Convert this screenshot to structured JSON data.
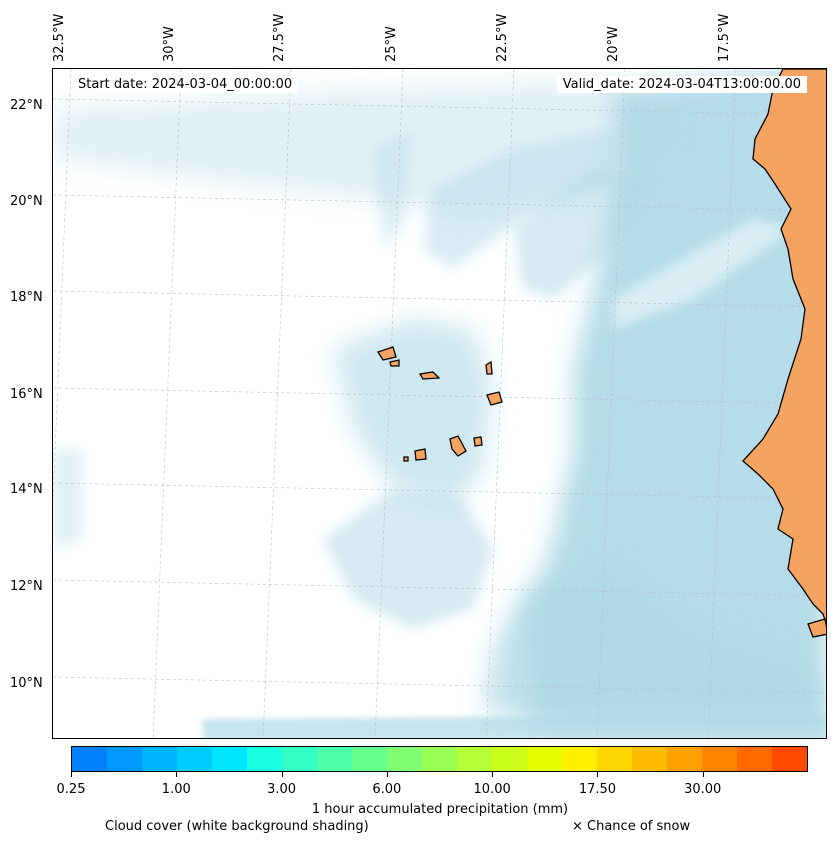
{
  "map": {
    "start_date": "Start date: 2024-03-04_00:00:00",
    "valid_date": "Valid_date: 2024-03-04T13:00:00.00",
    "lon_labels": [
      "32.5°W",
      "30°W",
      "27.5°W",
      "25°W",
      "22.5°W",
      "20°W",
      "17.5°W"
    ],
    "lat_labels": [
      "22°N",
      "20°N",
      "18°N",
      "16°N",
      "14°N",
      "12°N",
      "10°N"
    ],
    "land_color": "#f4a460",
    "cloud_color": "#add8e6",
    "ocean_color": "#ffffff"
  },
  "colorbar": {
    "colors": [
      "#0080ff",
      "#0099ff",
      "#00b3ff",
      "#00ccff",
      "#00e6ff",
      "#1affe0",
      "#33ffc4",
      "#4dffa8",
      "#66ff8c",
      "#80ff70",
      "#99ff54",
      "#b3ff38",
      "#ccff1c",
      "#e6ff00",
      "#fff000",
      "#ffd500",
      "#ffbb00",
      "#ffa000",
      "#ff8500",
      "#ff6a00",
      "#ff4800"
    ],
    "tick_labels": [
      "0.25",
      "1.00",
      "3.00",
      "6.00",
      "10.00",
      "17.50",
      "30.00"
    ],
    "label": "1 hour accumulated precipitation (mm)"
  },
  "legend": {
    "cloud_caption": "Cloud cover (white background shading)",
    "snow_caption": "× Chance of snow"
  }
}
